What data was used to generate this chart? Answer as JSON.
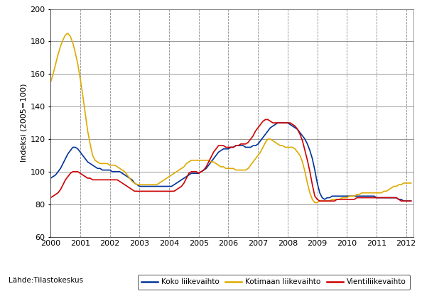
{
  "ylabel": "Indeksi (2005=100)",
  "source_label": "Lähde:Tilastokeskus",
  "ylim": [
    60,
    200
  ],
  "yticks": [
    60,
    80,
    100,
    120,
    140,
    160,
    180,
    200
  ],
  "start_year": 2000,
  "start_month": 1,
  "colors": [
    "#003399",
    "#DDAA00",
    "#CC0000"
  ],
  "legend_labels": [
    "Koko liikevaihto",
    "Kotimaan liikevaihto",
    "Vientiliikevaihto"
  ],
  "background_color": "#FFFFFF",
  "grid_color": "#AAAAAA",
  "koko_liikevaihto": [
    96,
    97,
    98,
    100,
    102,
    105,
    108,
    111,
    113,
    115,
    115,
    114,
    112,
    110,
    108,
    106,
    105,
    104,
    103,
    102,
    102,
    101,
    101,
    101,
    101,
    100,
    100,
    100,
    100,
    99,
    98,
    97,
    96,
    95,
    93,
    92,
    91,
    91,
    91,
    91,
    91,
    91,
    91,
    91,
    91,
    91,
    91,
    91,
    91,
    91,
    92,
    93,
    94,
    95,
    96,
    97,
    98,
    99,
    99,
    99,
    99,
    100,
    101,
    102,
    104,
    106,
    108,
    110,
    112,
    113,
    114,
    114,
    114,
    115,
    115,
    116,
    116,
    116,
    116,
    115,
    115,
    115,
    116,
    116,
    117,
    119,
    121,
    123,
    125,
    127,
    128,
    129,
    130,
    130,
    130,
    130,
    130,
    129,
    128,
    127,
    126,
    124,
    122,
    120,
    117,
    113,
    108,
    101,
    93,
    87,
    84,
    83,
    84,
    84,
    85,
    85,
    85,
    85,
    85,
    85,
    85,
    85,
    85,
    85,
    85,
    85,
    85,
    85,
    85,
    85,
    85,
    85,
    84,
    84,
    84,
    84,
    84,
    84,
    84,
    84,
    84,
    83,
    83,
    82,
    82,
    82,
    82
  ],
  "kotimaan_liikevaihto": [
    155,
    160,
    166,
    172,
    177,
    181,
    184,
    185,
    183,
    179,
    173,
    166,
    157,
    147,
    136,
    125,
    117,
    110,
    107,
    106,
    105,
    105,
    105,
    105,
    104,
    104,
    104,
    103,
    102,
    101,
    100,
    98,
    96,
    94,
    93,
    92,
    92,
    92,
    92,
    92,
    92,
    92,
    92,
    92,
    93,
    94,
    95,
    96,
    97,
    98,
    99,
    100,
    101,
    102,
    103,
    105,
    106,
    107,
    107,
    107,
    107,
    107,
    107,
    107,
    107,
    106,
    106,
    105,
    104,
    103,
    103,
    102,
    102,
    102,
    102,
    101,
    101,
    101,
    101,
    101,
    102,
    104,
    106,
    108,
    110,
    112,
    115,
    118,
    120,
    120,
    119,
    118,
    117,
    116,
    116,
    115,
    115,
    115,
    115,
    114,
    112,
    110,
    106,
    100,
    93,
    87,
    83,
    81,
    81,
    82,
    82,
    82,
    82,
    82,
    83,
    83,
    83,
    83,
    84,
    84,
    84,
    85,
    85,
    85,
    86,
    86,
    87,
    87,
    87,
    87,
    87,
    87,
    87,
    87,
    87,
    88,
    88,
    89,
    90,
    91,
    91,
    92,
    92,
    93,
    93,
    93,
    93
  ],
  "vienti_liikevaihto": [
    84,
    85,
    86,
    87,
    89,
    92,
    95,
    97,
    99,
    100,
    100,
    100,
    99,
    98,
    97,
    96,
    96,
    95,
    95,
    95,
    95,
    95,
    95,
    95,
    95,
    95,
    95,
    95,
    94,
    93,
    92,
    91,
    90,
    89,
    88,
    88,
    88,
    88,
    88,
    88,
    88,
    88,
    88,
    88,
    88,
    88,
    88,
    88,
    88,
    88,
    88,
    89,
    90,
    91,
    93,
    96,
    99,
    100,
    100,
    100,
    99,
    100,
    101,
    103,
    106,
    109,
    112,
    114,
    116,
    116,
    116,
    115,
    115,
    115,
    115,
    116,
    116,
    117,
    117,
    117,
    118,
    120,
    122,
    125,
    127,
    129,
    131,
    132,
    132,
    131,
    130,
    130,
    130,
    130,
    130,
    130,
    130,
    130,
    129,
    128,
    126,
    123,
    119,
    113,
    107,
    100,
    92,
    85,
    83,
    82,
    82,
    82,
    82,
    82,
    82,
    82,
    83,
    83,
    83,
    83,
    83,
    83,
    83,
    83,
    84,
    84,
    84,
    84,
    84,
    84,
    84,
    84,
    84,
    84,
    84,
    84,
    84,
    84,
    84,
    84,
    84,
    83,
    82,
    82,
    82,
    82,
    82
  ]
}
